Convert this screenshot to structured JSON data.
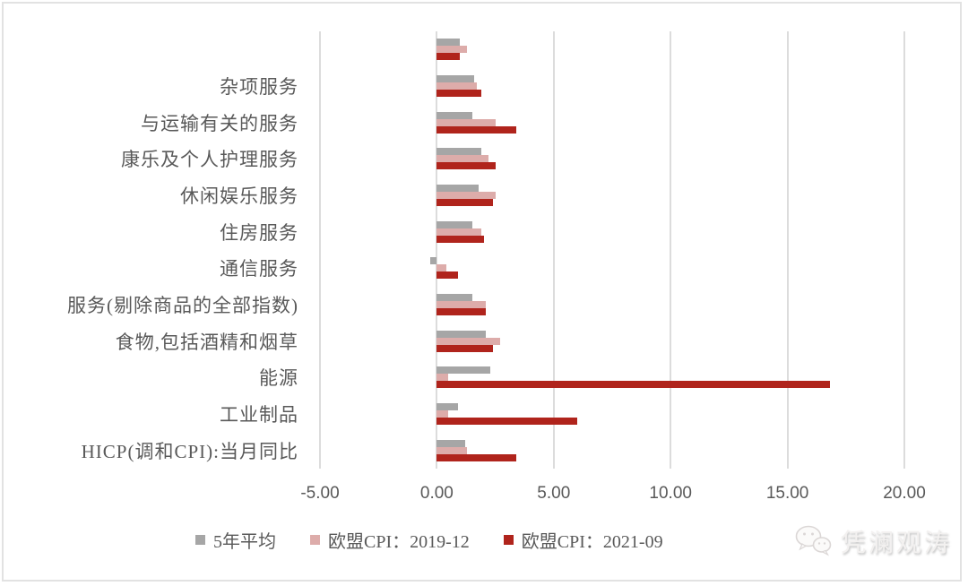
{
  "chart_data": {
    "type": "bar",
    "orientation": "horizontal",
    "title": "",
    "categories": [
      "",
      "杂项服务",
      "与运输有关的服务",
      "康乐及个人护理服务",
      "休闲娱乐服务",
      "住房服务",
      "通信服务",
      "服务(剔除商品的全部指数)",
      "食物,包括酒精和烟草",
      "能源",
      "工业制品",
      "HICP(调和CPI):当月同比"
    ],
    "series": [
      {
        "name": "5年平均",
        "color": "#a6a6a6",
        "values": [
          1.0,
          1.6,
          1.5,
          1.9,
          1.8,
          1.5,
          -0.3,
          1.5,
          2.1,
          2.3,
          0.9,
          1.2
        ]
      },
      {
        "name": "欧盟CPI：2019-12",
        "color": "#ddacaa",
        "values": [
          1.3,
          1.7,
          2.5,
          2.2,
          2.5,
          1.9,
          0.4,
          2.1,
          2.7,
          0.5,
          0.5,
          1.3
        ]
      },
      {
        "name": "欧盟CPI：2021-09",
        "color": "#b0241c",
        "values": [
          1.0,
          1.9,
          3.4,
          2.5,
          2.4,
          2.0,
          0.9,
          2.1,
          2.4,
          16.8,
          6.0,
          3.4
        ]
      }
    ],
    "xlim": [
      -5,
      20
    ],
    "ticks": [
      -5,
      0,
      5,
      10,
      15,
      20
    ],
    "tick_labels": [
      "-5.00",
      "0.00",
      "5.00",
      "10.00",
      "15.00",
      "20.00"
    ],
    "grid": true,
    "legend_position": "bottom",
    "xlabel": "",
    "ylabel": ""
  },
  "watermark": {
    "text": "凭澜观涛",
    "icon": "wechat-icon"
  },
  "colors": {
    "axis_text": "#595959",
    "gridline": "#dcdcdc",
    "frame_border": "#e2e2e2",
    "bar_gray": "#a6a6a6",
    "bar_pink": "#ddacaa",
    "bar_red": "#b0241c"
  }
}
